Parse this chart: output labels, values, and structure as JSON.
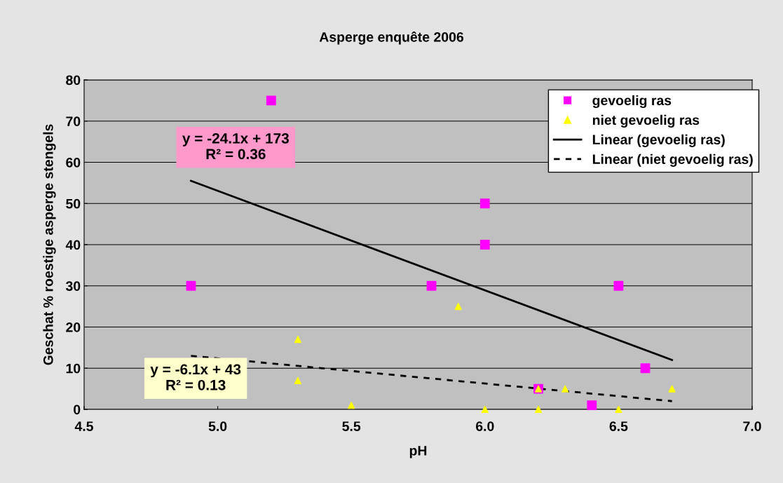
{
  "chart_data": {
    "type": "scatter",
    "title": "Asperge enquête 2006",
    "xlabel": "pH",
    "ylabel": "Geschat % roestige asperge stengels",
    "xlim": [
      4.5,
      7.0
    ],
    "xticks": [
      {
        "value": 4.5,
        "label": "4.5"
      },
      {
        "value": 5.0,
        "label": "5.0"
      },
      {
        "value": 5.5,
        "label": "5.5"
      },
      {
        "value": 6.0,
        "label": "6.0"
      },
      {
        "value": 6.5,
        "label": "6.5"
      },
      {
        "value": 7.0,
        "label": "7.0"
      }
    ],
    "ylim": [
      0,
      80
    ],
    "yticks": [
      0,
      10,
      20,
      30,
      40,
      50,
      60,
      70,
      80
    ],
    "grid": "y",
    "legend": "top right",
    "series": [
      {
        "name": "gevoelig ras",
        "marker": "square",
        "color": "#ff00ff",
        "x": [
          4.9,
          5.2,
          5.8,
          6.0,
          6.0,
          6.2,
          6.4,
          6.5,
          6.6
        ],
        "values": [
          30,
          75,
          30,
          50,
          40,
          5,
          1,
          30,
          10
        ]
      },
      {
        "name": "niet gevoelig ras",
        "marker": "triangle",
        "color": "#ffff00",
        "x": [
          5.3,
          5.3,
          5.5,
          5.9,
          6.0,
          6.2,
          6.2,
          6.3,
          6.5,
          6.7
        ],
        "values": [
          17,
          7,
          1,
          25,
          0,
          5,
          0,
          5,
          0,
          5
        ]
      },
      {
        "name": "Linear (gevoelig ras)",
        "type": "line",
        "line_style": "solid",
        "color": "#000000",
        "x": [
          4.9,
          6.7
        ],
        "values": [
          55.5,
          12
        ]
      },
      {
        "name": "Linear (niet gevoelig ras)",
        "type": "line",
        "line_style": "dashed",
        "color": "#000000",
        "x": [
          4.9,
          6.7
        ],
        "values": [
          13,
          2
        ]
      }
    ],
    "annotations": [
      "y = -24.1x + 173\nR² = 0.36",
      "y = -6.1x + 43\nR² = 0.13"
    ]
  }
}
